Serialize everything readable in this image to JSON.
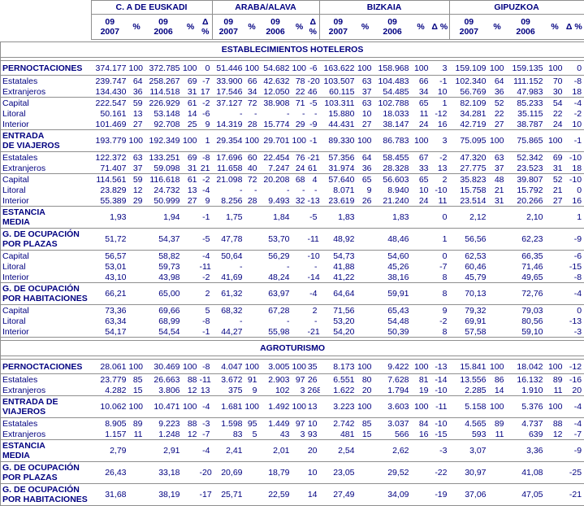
{
  "colors": {
    "text": "#000080",
    "border": "#8f8f8f",
    "background": "#ffffff"
  },
  "header": {
    "groups": [
      {
        "name": "C. A DE EUSKADI"
      },
      {
        "name": "ARABA/ALAVA"
      },
      {
        "name": "BIZKAIA"
      },
      {
        "name": "GIPUZKOA"
      }
    ],
    "columns": [
      "09\n2007",
      "%",
      "09\n2006",
      "%",
      "Δ %"
    ]
  },
  "sections": [
    {
      "title": "ESTABLECIMIENTOS HOTELEROS",
      "rows": [
        {
          "label": "PERNOCTACIONES",
          "bold": true,
          "rule": true,
          "cells": [
            "374.177",
            "100",
            "372.785",
            "100",
            "0",
            "51.446",
            "100",
            "54.682",
            "100",
            "-6",
            "163.622",
            "100",
            "158.968",
            "100",
            "3",
            "159.109",
            "100",
            "159.135",
            "100",
            "0"
          ]
        },
        {
          "label": "Estatales",
          "bold": false,
          "rule": true,
          "cells": [
            "239.747",
            "64",
            "258.267",
            "69",
            "-7",
            "33.900",
            "66",
            "42.632",
            "78",
            "-20",
            "103.507",
            "63",
            "104.483",
            "66",
            "-1",
            "102.340",
            "64",
            "111.152",
            "70",
            "-8"
          ]
        },
        {
          "label": "Extranjeros",
          "bold": false,
          "rule": false,
          "cells": [
            "134.430",
            "36",
            "114.518",
            "31",
            "17",
            "17.546",
            "34",
            "12.050",
            "22",
            "46",
            "60.115",
            "37",
            "54.485",
            "34",
            "10",
            "56.769",
            "36",
            "47.983",
            "30",
            "18"
          ]
        },
        {
          "label": "Capital",
          "bold": false,
          "rule": true,
          "cells": [
            "222.547",
            "59",
            "226.929",
            "61",
            "-2",
            "37.127",
            "72",
            "38.908",
            "71",
            "-5",
            "103.311",
            "63",
            "102.788",
            "65",
            "1",
            "82.109",
            "52",
            "85.233",
            "54",
            "-4"
          ]
        },
        {
          "label": "Litoral",
          "bold": false,
          "rule": false,
          "cells": [
            "50.161",
            "13",
            "53.148",
            "14",
            "-6",
            "-",
            "-",
            "-",
            "-",
            "-",
            "15.880",
            "10",
            "18.033",
            "11",
            "-12",
            "34.281",
            "22",
            "35.115",
            "22",
            "-2"
          ]
        },
        {
          "label": "Interior",
          "bold": false,
          "rule": false,
          "cells": [
            "101.469",
            "27",
            "92.708",
            "25",
            "9",
            "14.319",
            "28",
            "15.774",
            "29",
            "-9",
            "44.431",
            "27",
            "38.147",
            "24",
            "16",
            "42.719",
            "27",
            "38.787",
            "24",
            "10"
          ]
        },
        {
          "label": "ENTRADA\nDE VIAJEROS",
          "bold": true,
          "rule": true,
          "cells": [
            "193.779",
            "100",
            "192.349",
            "100",
            "1",
            "29.354",
            "100",
            "29.701",
            "100",
            "-1",
            "89.330",
            "100",
            "86.783",
            "100",
            "3",
            "75.095",
            "100",
            "75.865",
            "100",
            "-1"
          ]
        },
        {
          "label": "Estatales",
          "bold": false,
          "rule": true,
          "cells": [
            "122.372",
            "63",
            "133.251",
            "69",
            "-8",
            "17.696",
            "60",
            "22.454",
            "76",
            "-21",
            "57.356",
            "64",
            "58.455",
            "67",
            "-2",
            "47.320",
            "63",
            "52.342",
            "69",
            "-10"
          ]
        },
        {
          "label": "Extranjeros",
          "bold": false,
          "rule": false,
          "cells": [
            "71.407",
            "37",
            "59.098",
            "31",
            "21",
            "11.658",
            "40",
            "7.247",
            "24",
            "61",
            "31.974",
            "36",
            "28.328",
            "33",
            "13",
            "27.775",
            "37",
            "23.523",
            "31",
            "18"
          ]
        },
        {
          "label": "Capital",
          "bold": false,
          "rule": true,
          "cells": [
            "114.561",
            "59",
            "116.618",
            "61",
            "-2",
            "21.098",
            "72",
            "20.208",
            "68",
            "4",
            "57.640",
            "65",
            "56.603",
            "65",
            "2",
            "35.823",
            "48",
            "39.807",
            "52",
            "-10"
          ]
        },
        {
          "label": "Litoral",
          "bold": false,
          "rule": false,
          "cells": [
            "23.829",
            "12",
            "24.732",
            "13",
            "-4",
            "-",
            "-",
            "-",
            "-",
            "-",
            "8.071",
            "9",
            "8.940",
            "10",
            "-10",
            "15.758",
            "21",
            "15.792",
            "21",
            "0"
          ]
        },
        {
          "label": "Interior",
          "bold": false,
          "rule": false,
          "cells": [
            "55.389",
            "29",
            "50.999",
            "27",
            "9",
            "8.256",
            "28",
            "9.493",
            "32",
            "-13",
            "23.619",
            "26",
            "21.240",
            "24",
            "11",
            "23.514",
            "31",
            "20.266",
            "27",
            "16"
          ]
        },
        {
          "label": "ESTANCIA\nMEDIA",
          "bold": true,
          "rule": true,
          "cells": [
            "1,93",
            "",
            "1,94",
            "",
            "-1",
            "1,75",
            "",
            "1,84",
            "",
            "-5",
            "1,83",
            "",
            "1,83",
            "",
            "0",
            "2,12",
            "",
            "2,10",
            "",
            "1"
          ]
        },
        {
          "label": "G. DE OCUPACIÓN\nPOR PLAZAS",
          "bold": true,
          "rule": true,
          "cells": [
            "51,72",
            "",
            "54,37",
            "",
            "-5",
            "47,78",
            "",
            "53,70",
            "",
            "-11",
            "48,92",
            "",
            "48,46",
            "",
            "1",
            "56,56",
            "",
            "62,23",
            "",
            "-9"
          ]
        },
        {
          "label": "Capital",
          "bold": false,
          "rule": true,
          "cells": [
            "56,57",
            "",
            "58,82",
            "",
            "-4",
            "50,64",
            "",
            "56,29",
            "",
            "-10",
            "54,73",
            "",
            "54,60",
            "",
            "0",
            "62,53",
            "",
            "66,35",
            "",
            "-6"
          ]
        },
        {
          "label": "Litoral",
          "bold": false,
          "rule": false,
          "cells": [
            "53,01",
            "",
            "59,73",
            "",
            "-11",
            "-",
            "",
            "-",
            "",
            "-",
            "41,88",
            "",
            "45,26",
            "",
            "-7",
            "60,46",
            "",
            "71,46",
            "",
            "-15"
          ]
        },
        {
          "label": "Interior",
          "bold": false,
          "rule": false,
          "cells": [
            "43,10",
            "",
            "43,98",
            "",
            "-2",
            "41,69",
            "",
            "48,24",
            "",
            "-14",
            "41,22",
            "",
            "38,16",
            "",
            "8",
            "45,79",
            "",
            "49,65",
            "",
            "-8"
          ]
        },
        {
          "label": "G. DE OCUPACIÓN\nPOR HABITACIONES",
          "bold": true,
          "rule": true,
          "cells": [
            "66,21",
            "",
            "65,00",
            "",
            "2",
            "61,32",
            "",
            "63,97",
            "",
            "-4",
            "64,64",
            "",
            "59,91",
            "",
            "8",
            "70,13",
            "",
            "72,76",
            "",
            "-4"
          ]
        },
        {
          "label": "Capital",
          "bold": false,
          "rule": true,
          "cells": [
            "73,36",
            "",
            "69,66",
            "",
            "5",
            "68,32",
            "",
            "67,28",
            "",
            "2",
            "71,56",
            "",
            "65,43",
            "",
            "9",
            "79,32",
            "",
            "79,03",
            "",
            "0"
          ]
        },
        {
          "label": "Litoral",
          "bold": false,
          "rule": false,
          "cells": [
            "63,34",
            "",
            "68,99",
            "",
            "-8",
            "-",
            "",
            "-",
            "",
            "-",
            "53,20",
            "",
            "54,48",
            "",
            "-2",
            "69,91",
            "",
            "80,56",
            "",
            "-13"
          ]
        },
        {
          "label": "Interior",
          "bold": false,
          "rule": false,
          "cells": [
            "54,17",
            "",
            "54,54",
            "",
            "-1",
            "44,27",
            "",
            "55,98",
            "",
            "-21",
            "54,20",
            "",
            "50,39",
            "",
            "8",
            "57,58",
            "",
            "59,10",
            "",
            "-3"
          ]
        }
      ]
    },
    {
      "title": "AGROTURISMO",
      "rows": [
        {
          "label": "PERNOCTACIONES",
          "bold": true,
          "rule": true,
          "cells": [
            "28.061",
            "100",
            "30.469",
            "100",
            "-8",
            "4.047",
            "100",
            "3.005",
            "100",
            "35",
            "8.173",
            "100",
            "9.422",
            "100",
            "-13",
            "15.841",
            "100",
            "18.042",
            "100",
            "-12"
          ]
        },
        {
          "label": "Estatales",
          "bold": false,
          "rule": true,
          "cells": [
            "23.779",
            "85",
            "26.663",
            "88",
            "-11",
            "3.672",
            "91",
            "2.903",
            "97",
            "26",
            "6.551",
            "80",
            "7.628",
            "81",
            "-14",
            "13.556",
            "86",
            "16.132",
            "89",
            "-16"
          ]
        },
        {
          "label": "Extranjeros",
          "bold": false,
          "rule": false,
          "cells": [
            "4.282",
            "15",
            "3.806",
            "12",
            "13",
            "375",
            "9",
            "102",
            "3",
            "268",
            "1.622",
            "20",
            "1.794",
            "19",
            "-10",
            "2.285",
            "14",
            "1.910",
            "11",
            "20"
          ]
        },
        {
          "label": "ENTRADA DE\nVIAJEROS",
          "bold": true,
          "rule": true,
          "cells": [
            "10.062",
            "100",
            "10.471",
            "100",
            "-4",
            "1.681",
            "100",
            "1.492",
            "100",
            "13",
            "3.223",
            "100",
            "3.603",
            "100",
            "-11",
            "5.158",
            "100",
            "5.376",
            "100",
            "-4"
          ]
        },
        {
          "label": "Estatales",
          "bold": false,
          "rule": true,
          "cells": [
            "8.905",
            "89",
            "9.223",
            "88",
            "-3",
            "1.598",
            "95",
            "1.449",
            "97",
            "10",
            "2.742",
            "85",
            "3.037",
            "84",
            "-10",
            "4.565",
            "89",
            "4.737",
            "88",
            "-4"
          ]
        },
        {
          "label": "Extranjeros",
          "bold": false,
          "rule": false,
          "cells": [
            "1.157",
            "11",
            "1.248",
            "12",
            "-7",
            "83",
            "5",
            "43",
            "3",
            "93",
            "481",
            "15",
            "566",
            "16",
            "-15",
            "593",
            "11",
            "639",
            "12",
            "-7"
          ]
        },
        {
          "label": "ESTANCIA\nMEDIA",
          "bold": true,
          "rule": true,
          "cells": [
            "2,79",
            "",
            "2,91",
            "",
            "-4",
            "2,41",
            "",
            "2,01",
            "",
            "20",
            "2,54",
            "",
            "2,62",
            "",
            "-3",
            "3,07",
            "",
            "3,36",
            "",
            "-9"
          ]
        },
        {
          "label": "G. DE OCUPACIÓN\nPOR PLAZAS",
          "bold": true,
          "rule": true,
          "cells": [
            "26,43",
            "",
            "33,18",
            "",
            "-20",
            "20,69",
            "",
            "18,79",
            "",
            "10",
            "23,05",
            "",
            "29,52",
            "",
            "-22",
            "30,97",
            "",
            "41,08",
            "",
            "-25"
          ]
        },
        {
          "label": "G. DE OCUPACIÓN\nPOR HABITACIONES",
          "bold": true,
          "rule": true,
          "cells": [
            "31,68",
            "",
            "38,19",
            "",
            "-17",
            "25,71",
            "",
            "22,59",
            "",
            "14",
            "27,49",
            "",
            "34,09",
            "",
            "-19",
            "37,06",
            "",
            "47,05",
            "",
            "-21"
          ]
        }
      ]
    }
  ]
}
